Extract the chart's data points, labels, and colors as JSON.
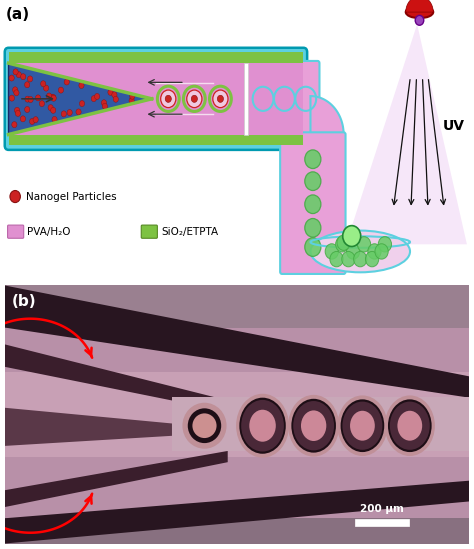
{
  "fig_width": 4.74,
  "fig_height": 5.49,
  "dpi": 100,
  "bg_color": "#ffffff",
  "panel_a_label": "(a)",
  "panel_b_label": "(b)",
  "legend_nanogel": "Nanogel Particles",
  "legend_pva": "PVA/H₂O",
  "legend_sio2": "SiO₂/ETPTA",
  "uv_label": "UV",
  "scalebar_label": "200 μm",
  "cyan_color": "#5dd0e0",
  "cyan_dark": "#009ab0",
  "green_border": "#7dc242",
  "pink_color": "#d880c0",
  "pink_light": "#e8a0d8",
  "pink_channel": "#e090d0",
  "blue_inner": "#2255a0",
  "nanogel_red": "#cc2222",
  "droplet_green": "#66cc66",
  "droplet_green_dark": "#44aa44",
  "arrow_color": "#333333",
  "uv_cone_color": "#e8c0f0",
  "lamp_red": "#cc1111",
  "lamp_purple": "#9944bb"
}
